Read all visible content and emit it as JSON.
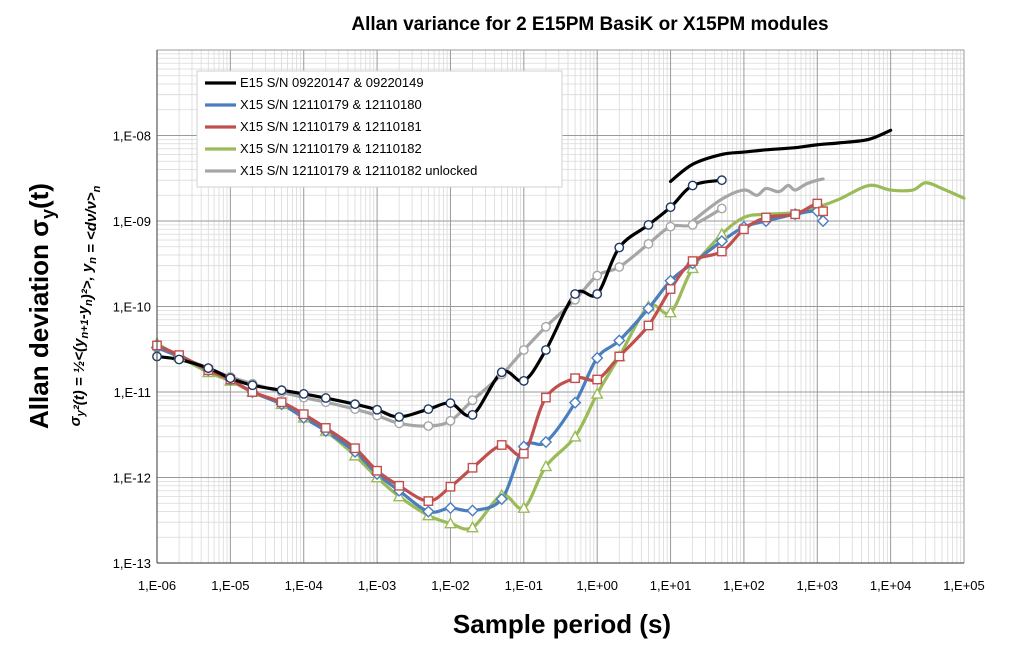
{
  "chart_data": {
    "type": "line",
    "title": "Allan variance for 2 E15PM BasiK or X15PM modules",
    "xlabel": "Sample period (s)",
    "ylabel_main": "Allan deviation σ_y(t)",
    "ylabel_sub": "σ_y²(t) = ½<(y_{n+1}-y_n)²>, y_n = <dν/ν>_n",
    "x_scale": "log",
    "y_scale": "log",
    "xlim": [
      1e-06,
      100000.0
    ],
    "ylim": [
      1e-13,
      1e-07
    ],
    "x_tick_labels": [
      "1,E-06",
      "1,E-05",
      "1,E-04",
      "1,E-03",
      "1,E-02",
      "1,E-01",
      "1,E+00",
      "1,E+01",
      "1,E+02",
      "1,E+03",
      "1,E+04",
      "1,E+05"
    ],
    "y_tick_labels": [
      "1,E-13",
      "1,E-12",
      "1,E-11",
      "1,E-10",
      "1,E-09",
      "1,E-08"
    ],
    "grid": true,
    "legend_position": "top-left",
    "series": [
      {
        "name": "E15 S/N 09220147 & 09220149",
        "color": "#000000",
        "marker": "circle",
        "marker_fill": "#ffffff",
        "marker_stroke": "#1f3864",
        "x": [
          1e-06,
          2e-06,
          5e-06,
          1e-05,
          2e-05,
          5e-05,
          0.0001,
          0.0002,
          0.0005,
          0.001,
          0.002,
          0.005,
          0.01,
          0.02,
          0.05,
          0.1,
          0.2,
          0.5,
          1,
          2,
          5,
          10,
          20,
          50
        ],
        "y": [
          2.6e-11,
          2.4e-11,
          1.9e-11,
          1.45e-11,
          1.2e-11,
          1.05e-11,
          9.5e-12,
          8.5e-12,
          7.2e-12,
          6.2e-12,
          5.1e-12,
          6.3e-12,
          7.4e-12,
          5.4e-12,
          1.7e-11,
          1.35e-11,
          3.1e-11,
          1.4e-10,
          1.4e-10,
          4.9e-10,
          9e-10,
          1.45e-09,
          2.6e-09,
          3e-09
        ],
        "marker_x": [
          1e-06,
          2e-06,
          5e-06,
          1e-05,
          2e-05,
          5e-05,
          0.0001,
          0.0002,
          0.0005,
          0.001,
          0.002,
          0.005,
          0.01,
          0.02,
          0.05,
          0.1,
          0.2,
          0.5,
          1,
          2,
          5,
          10,
          20,
          50
        ],
        "extra_x": [
          10,
          20,
          50,
          100,
          200,
          500,
          1000,
          2000,
          5000,
          10000
        ],
        "extra_y": [
          2.9e-09,
          4.6e-09,
          6e-09,
          6.4e-09,
          6.8e-09,
          7.2e-09,
          7.8e-09,
          8.2e-09,
          9e-09,
          1.15e-08
        ]
      },
      {
        "name": "X15 S/N 12110179 & 12110180",
        "color": "#4a7ebf",
        "marker": "diamond",
        "marker_fill": "#ffffff",
        "marker_stroke": "#4a7ebf",
        "x": [
          1e-06,
          2e-06,
          5e-06,
          1e-05,
          2e-05,
          5e-05,
          0.0001,
          0.0002,
          0.0005,
          0.001,
          0.002,
          0.005,
          0.01,
          0.02,
          0.05,
          0.1,
          0.2,
          0.5,
          1,
          2,
          5,
          10,
          20,
          50,
          100,
          200,
          500,
          1000,
          1200
        ],
        "y": [
          3.3e-11,
          2.6e-11,
          1.8e-11,
          1.4e-11,
          1e-11,
          7.2e-12,
          5e-12,
          3.5e-12,
          2e-12,
          1.1e-12,
          7e-13,
          4e-13,
          4.4e-13,
          4.1e-13,
          5.6e-13,
          2.3e-12,
          2.6e-12,
          7.5e-12,
          2.5e-11,
          4e-11,
          9.5e-11,
          2e-10,
          3.2e-10,
          5.8e-10,
          8.5e-10,
          1e-09,
          1.2e-09,
          1.3e-09,
          1e-09
        ]
      },
      {
        "name": "X15 S/N 12110179 & 12110181",
        "color": "#c0504d",
        "marker": "square",
        "marker_fill": "#ffffff",
        "marker_stroke": "#c0504d",
        "x": [
          1e-06,
          2e-06,
          5e-06,
          1e-05,
          2e-05,
          5e-05,
          0.0001,
          0.0002,
          0.0005,
          0.001,
          0.002,
          0.005,
          0.01,
          0.02,
          0.05,
          0.1,
          0.2,
          0.5,
          1,
          2,
          5,
          10,
          20,
          50,
          100,
          200,
          500,
          1000,
          1200
        ],
        "y": [
          3.5e-11,
          2.7e-11,
          1.8e-11,
          1.4e-11,
          1e-11,
          7.6e-12,
          5.5e-12,
          3.8e-12,
          2.2e-12,
          1.2e-12,
          8e-13,
          5.3e-13,
          7.8e-13,
          1.3e-12,
          2.4e-12,
          1.9e-12,
          8.6e-12,
          1.45e-11,
          1.4e-11,
          2.6e-11,
          6e-11,
          1.6e-10,
          3.4e-10,
          4.4e-10,
          8e-10,
          1.1e-09,
          1.2e-09,
          1.6e-09,
          1.3e-09
        ]
      },
      {
        "name": "X15 S/N 12110179 & 12110182",
        "color": "#9bbb59",
        "marker": "triangle",
        "marker_fill": "#ffffff",
        "marker_stroke": "#9bbb59",
        "x": [
          1e-06,
          2e-06,
          5e-06,
          1e-05,
          2e-05,
          5e-05,
          0.0001,
          0.0002,
          0.0005,
          0.001,
          0.002,
          0.005,
          0.01,
          0.02,
          0.05,
          0.1,
          0.2,
          0.5,
          1,
          2,
          5,
          10,
          20,
          50,
          100,
          200,
          500,
          1000,
          2000,
          5000,
          10000,
          20000,
          30000,
          50000,
          100000
        ],
        "y": [
          3.7e-11,
          2.6e-11,
          1.7e-11,
          1.35e-11,
          1e-11,
          7.2e-12,
          5e-12,
          3.5e-12,
          1.8e-12,
          1e-12,
          6e-13,
          3.6e-13,
          2.9e-13,
          2.6e-13,
          6.2e-13,
          4.4e-13,
          1.35e-12,
          3e-12,
          9.5e-12,
          2.6e-11,
          1e-10,
          8.5e-11,
          2.8e-10,
          7e-10,
          1.1e-09,
          1.2e-09,
          1.25e-09,
          1.45e-09,
          1.8e-09,
          2.6e-09,
          2.3e-09,
          2.3e-09,
          2.8e-09,
          2.4e-09,
          1.85e-09
        ],
        "marker_count": 24
      },
      {
        "name": "X15 S/N 12110179 & 12110182 unlocked",
        "color": "#a6a6a6",
        "marker": "circle",
        "marker_fill": "#ffffff",
        "marker_stroke": "#a6a6a6",
        "x": [
          1e-06,
          2e-06,
          5e-06,
          1e-05,
          2e-05,
          5e-05,
          0.0001,
          0.0002,
          0.0005,
          0.001,
          0.002,
          0.005,
          0.01,
          0.02,
          0.05,
          0.1,
          0.2,
          0.5,
          1,
          2,
          5,
          10,
          20,
          50
        ],
        "y": [
          3.3e-11,
          2.6e-11,
          1.9e-11,
          1.5e-11,
          1.25e-11,
          1e-11,
          8.6e-12,
          7.6e-12,
          6.3e-12,
          5.3e-12,
          4.3e-12,
          4e-12,
          4.6e-12,
          8e-12,
          1.6e-11,
          3.1e-11,
          5.8e-11,
          1.2e-10,
          2.3e-10,
          2.9e-10,
          5.4e-10,
          8.6e-10,
          9e-10,
          1.4e-09
        ],
        "extra_x": [
          20,
          50,
          100,
          150,
          200,
          300,
          400,
          500,
          700,
          1000,
          1200
        ],
        "extra_y": [
          1e-09,
          1.8e-09,
          2.3e-09,
          2e-09,
          2.4e-09,
          2.2e-09,
          2.6e-09,
          2.3e-09,
          2.7e-09,
          3e-09,
          3.1e-09
        ]
      }
    ]
  }
}
